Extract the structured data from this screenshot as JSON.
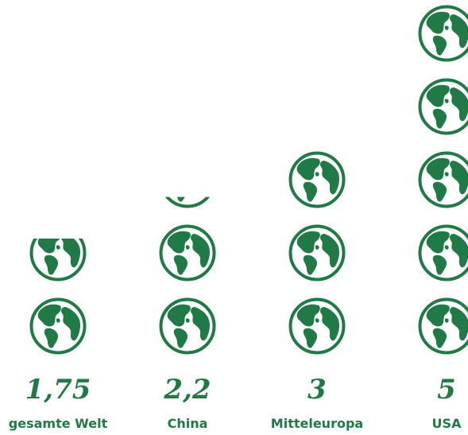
{
  "colors": {
    "accent": "#1f7a45",
    "background": "#ffffff"
  },
  "icon": "globe-icon",
  "chart_data": {
    "type": "bar",
    "title": "",
    "xlabel": "",
    "ylabel": "",
    "unit_icon": "globe-icon",
    "categories": [
      "gesamte Welt",
      "China",
      "Mitteleuropa",
      "USA"
    ],
    "values": [
      1.75,
      2.2,
      3,
      5
    ],
    "value_labels": [
      "1,75",
      "2,2",
      "3",
      "5"
    ]
  }
}
